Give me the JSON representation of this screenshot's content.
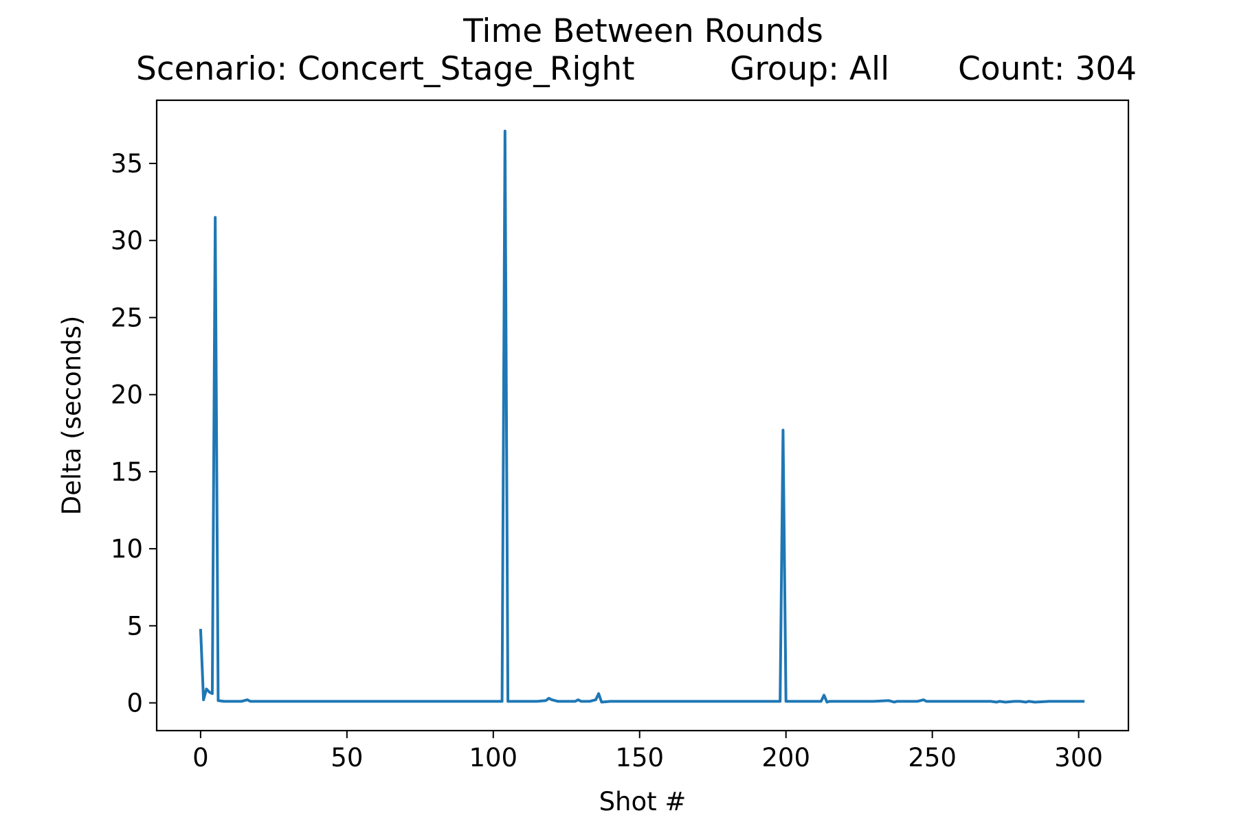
{
  "chart_data": {
    "type": "line",
    "title": "Time Between Rounds",
    "subtitle_parts": {
      "scenario": "Scenario: Concert_Stage_Right",
      "group": "Group: All",
      "count": "Count: 304"
    },
    "xlabel": "Shot #",
    "ylabel": "Delta (seconds)",
    "xlim": [
      -15,
      317
    ],
    "ylim": [
      -1.8,
      39.1
    ],
    "xticks": [
      0,
      50,
      100,
      150,
      200,
      250,
      300
    ],
    "yticks": [
      0,
      5,
      10,
      15,
      20,
      25,
      30,
      35
    ],
    "grid": false,
    "series": [
      {
        "color": "#1f77b4",
        "x": [
          0,
          1,
          2,
          3,
          4,
          5,
          6,
          8,
          10,
          14,
          16,
          17,
          20,
          30,
          40,
          50,
          60,
          70,
          80,
          90,
          100,
          103,
          104,
          105,
          106,
          110,
          115,
          118,
          119,
          120,
          122,
          125,
          128,
          129,
          130,
          133,
          135,
          136,
          137,
          140,
          145,
          150,
          160,
          170,
          180,
          190,
          198,
          199,
          200,
          201,
          205,
          210,
          212,
          213,
          214,
          215,
          220,
          225,
          230,
          235,
          237,
          238,
          240,
          245,
          247,
          248,
          250,
          260,
          270,
          272,
          273,
          275,
          278,
          280,
          282,
          283,
          285,
          290,
          295,
          300,
          302
        ],
        "y": [
          4.8,
          0.2,
          0.9,
          0.7,
          0.6,
          31.5,
          0.15,
          0.1,
          0.1,
          0.1,
          0.2,
          0.1,
          0.1,
          0.1,
          0.1,
          0.1,
          0.1,
          0.1,
          0.1,
          0.1,
          0.1,
          0.1,
          37.1,
          0.1,
          0.1,
          0.1,
          0.1,
          0.15,
          0.3,
          0.2,
          0.1,
          0.1,
          0.1,
          0.2,
          0.1,
          0.1,
          0.2,
          0.6,
          0.05,
          0.1,
          0.1,
          0.1,
          0.1,
          0.1,
          0.1,
          0.1,
          0.1,
          17.7,
          0.1,
          0.1,
          0.1,
          0.1,
          0.1,
          0.5,
          0.05,
          0.1,
          0.1,
          0.1,
          0.1,
          0.15,
          0.05,
          0.1,
          0.1,
          0.1,
          0.2,
          0.1,
          0.1,
          0.1,
          0.1,
          0.05,
          0.1,
          0.05,
          0.1,
          0.1,
          0.05,
          0.1,
          0.05,
          0.1,
          0.1,
          0.1,
          0.1
        ]
      }
    ]
  }
}
